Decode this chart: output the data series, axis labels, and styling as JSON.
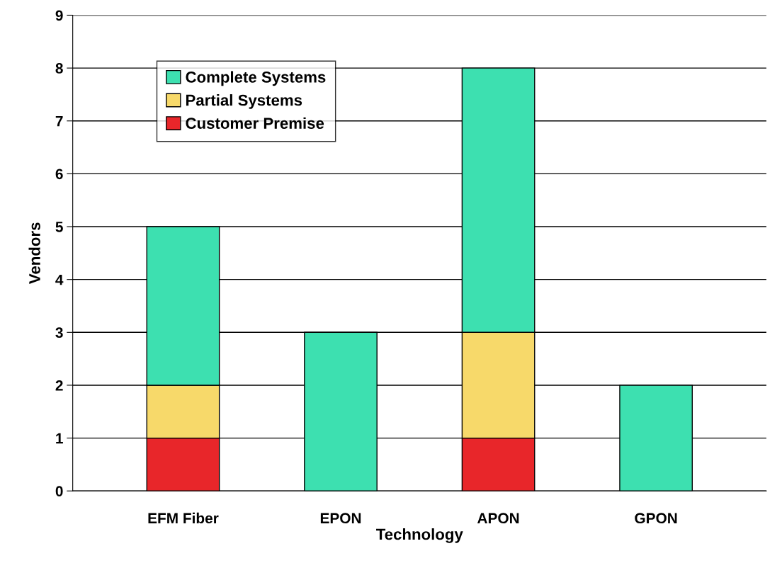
{
  "chart_data": {
    "type": "bar",
    "stacked": true,
    "xlabel": "Technology",
    "ylabel": "Vendors",
    "categories": [
      "EFM Fiber",
      "EPON",
      "APON",
      "GPON"
    ],
    "series": [
      {
        "name": "Customer Premise",
        "color": "#e8262a",
        "values": [
          1,
          0,
          1,
          0
        ]
      },
      {
        "name": "Partial Systems",
        "color": "#f7d96a",
        "values": [
          1,
          0,
          2,
          0
        ]
      },
      {
        "name": "Complete Systems",
        "color": "#3de0b0",
        "values": [
          3,
          3,
          5,
          2
        ]
      }
    ],
    "ylim": [
      0,
      9
    ],
    "yticks": [
      0,
      1,
      2,
      3,
      4,
      5,
      6,
      7,
      8,
      9
    ],
    "grid": "y",
    "legend": "top left"
  }
}
